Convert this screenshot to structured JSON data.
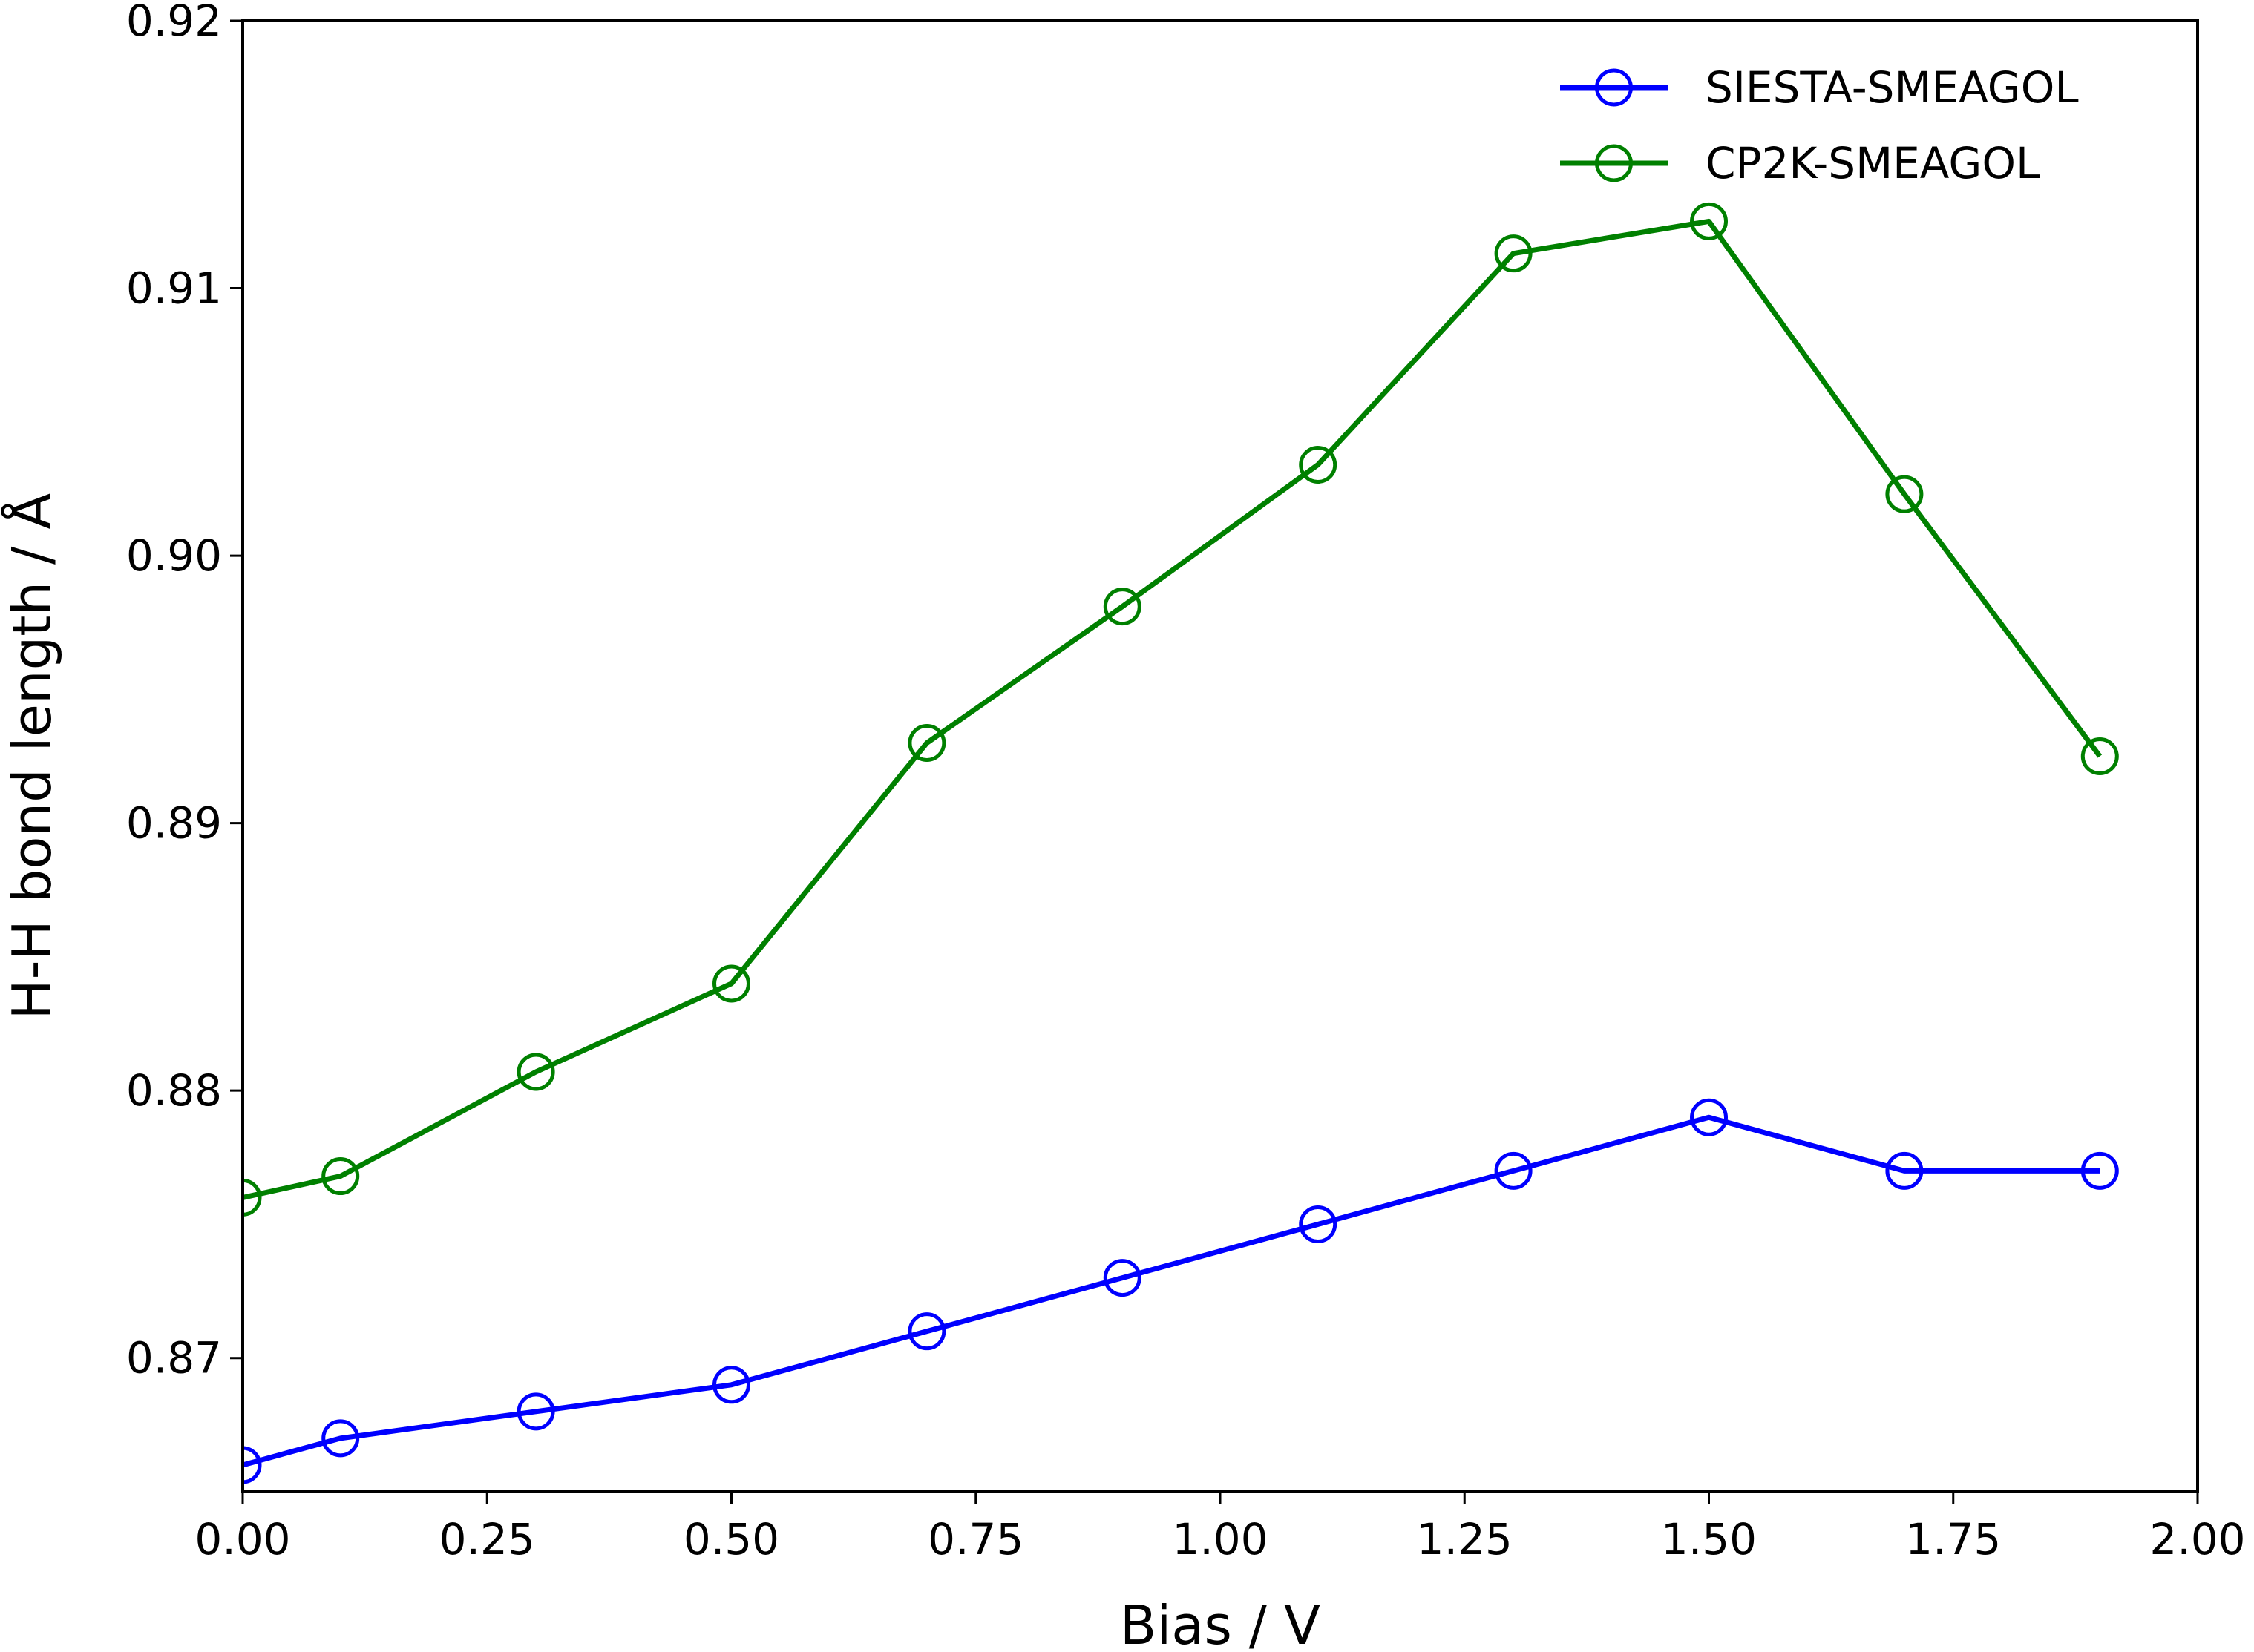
{
  "chart_data": {
    "type": "line",
    "title": "",
    "xlabel": "Bias / V",
    "ylabel": "H-H bond length / Å",
    "xlim": [
      0.0,
      2.0
    ],
    "ylim": [
      0.865,
      0.92
    ],
    "xticks": [
      0.0,
      0.25,
      0.5,
      0.75,
      1.0,
      1.25,
      1.5,
      1.75,
      2.0
    ],
    "xtick_labels": [
      "0.00",
      "0.25",
      "0.50",
      "0.75",
      "1.00",
      "1.25",
      "1.50",
      "1.75",
      "2.00"
    ],
    "yticks": [
      0.87,
      0.88,
      0.89,
      0.9,
      0.91,
      0.92
    ],
    "ytick_labels": [
      "0.87",
      "0.88",
      "0.89",
      "0.90",
      "0.91",
      "0.92"
    ],
    "grid": false,
    "legend_position": "top-right",
    "x": [
      0.0,
      0.1,
      0.3,
      0.5,
      0.7,
      0.9,
      1.1,
      1.3,
      1.5,
      1.7,
      1.9
    ],
    "series": [
      {
        "name": "SIESTA-SMEAGOL",
        "color": "#0000ff",
        "marker": "open-circle",
        "values": [
          0.866,
          0.867,
          0.868,
          0.869,
          0.871,
          0.873,
          0.875,
          0.877,
          0.879,
          0.877,
          0.877
        ]
      },
      {
        "name": "CP2K-SMEAGOL",
        "color": "#008000",
        "marker": "open-circle",
        "values": [
          0.876,
          0.8768,
          0.8807,
          0.884,
          0.893,
          0.8981,
          0.9034,
          0.9113,
          0.9125,
          0.9023,
          0.8925
        ]
      }
    ]
  }
}
